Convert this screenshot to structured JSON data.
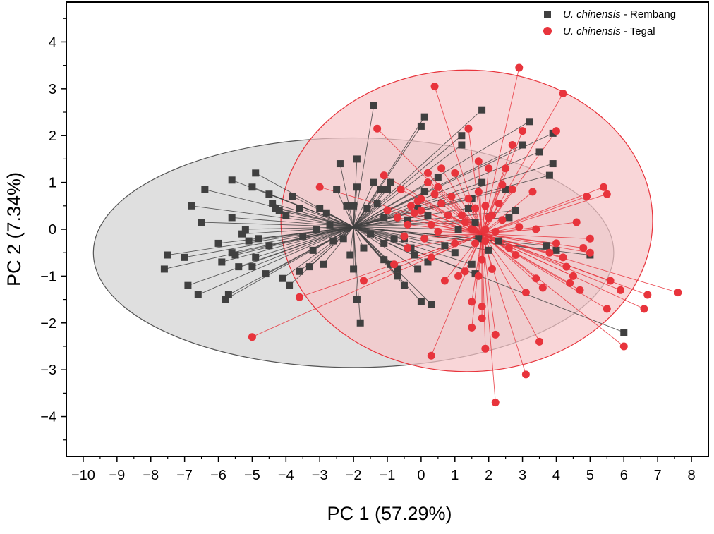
{
  "chart_data": {
    "type": "scatter",
    "xlabel": "PC 1 (57.29%)",
    "ylabel": "PC 2 (7.34%)",
    "xlim": [
      -10.5,
      8.5
    ],
    "ylim": [
      -4.85,
      4.85
    ],
    "x_ticks": [
      -10,
      -9,
      -8,
      -7,
      -6,
      -5,
      -4,
      -3,
      -2,
      -1,
      0,
      1,
      2,
      3,
      4,
      5,
      6,
      7,
      8
    ],
    "y_ticks": [
      -4,
      -3,
      -2,
      -1,
      0,
      1,
      2,
      3,
      4
    ],
    "x_tick_labels": [
      "−10",
      "−9",
      "−8",
      "−7",
      "−6",
      "−5",
      "−4",
      "−3",
      "−2",
      "−1",
      "0",
      "1",
      "2",
      "3",
      "4",
      "5",
      "6",
      "7",
      "8"
    ],
    "y_tick_labels": [
      "−4",
      "−3",
      "−2",
      "−1",
      "0",
      "1",
      "2",
      "3",
      "4"
    ],
    "grid": false,
    "legend_position": "top-right",
    "series": [
      {
        "name": "Rembang",
        "legend_italic": "U. chinensis",
        "legend_rest": " - Rembang",
        "marker": "square",
        "color": "#404040",
        "centroid": [
          -2.0,
          0.05
        ],
        "ellipse": {
          "center": [
            -2.0,
            -0.5
          ],
          "rx": 7.7,
          "ry": 2.45,
          "fill": "#d9d9d9",
          "stroke": "#555555"
        },
        "points": [
          [
            -7.6,
            -0.85
          ],
          [
            -7.5,
            -0.55
          ],
          [
            -7.0,
            -0.6
          ],
          [
            -6.9,
            -1.2
          ],
          [
            -6.6,
            -1.4
          ],
          [
            -6.8,
            0.5
          ],
          [
            -6.5,
            0.15
          ],
          [
            -6.4,
            0.85
          ],
          [
            -6.0,
            -0.3
          ],
          [
            -5.9,
            -0.7
          ],
          [
            -5.8,
            -1.5
          ],
          [
            -5.7,
            -1.4
          ],
          [
            -5.6,
            -0.5
          ],
          [
            -5.5,
            -0.55
          ],
          [
            -5.6,
            0.25
          ],
          [
            -5.4,
            -0.8
          ],
          [
            -5.3,
            -0.1
          ],
          [
            -5.2,
            0.0
          ],
          [
            -5.1,
            -0.25
          ],
          [
            -5.0,
            -0.8
          ],
          [
            -5.0,
            0.9
          ],
          [
            -5.6,
            1.05
          ],
          [
            -4.9,
            1.2
          ],
          [
            -4.9,
            -0.6
          ],
          [
            -4.8,
            -0.2
          ],
          [
            -4.5,
            -0.35
          ],
          [
            -4.6,
            -0.95
          ],
          [
            -4.5,
            0.75
          ],
          [
            -4.4,
            0.55
          ],
          [
            -4.3,
            0.45
          ],
          [
            -4.2,
            0.4
          ],
          [
            -4.1,
            -1.05
          ],
          [
            -4.0,
            0.3
          ],
          [
            -3.9,
            -1.2
          ],
          [
            -3.8,
            0.7
          ],
          [
            -3.6,
            0.45
          ],
          [
            -3.6,
            -0.9
          ],
          [
            -3.5,
            -0.15
          ],
          [
            -3.3,
            -0.8
          ],
          [
            -3.2,
            -0.45
          ],
          [
            -3.1,
            0.0
          ],
          [
            -3.0,
            0.45
          ],
          [
            -2.9,
            -0.75
          ],
          [
            -2.8,
            0.35
          ],
          [
            -2.7,
            0.1
          ],
          [
            -2.6,
            -0.25
          ],
          [
            -2.5,
            0.85
          ],
          [
            -2.4,
            1.4
          ],
          [
            -2.3,
            -0.2
          ],
          [
            -2.2,
            0.5
          ],
          [
            -2.1,
            -0.55
          ],
          [
            -2.0,
            0.5
          ],
          [
            -2.0,
            -0.85
          ],
          [
            -1.9,
            1.5
          ],
          [
            -1.9,
            0.9
          ],
          [
            -1.9,
            -1.5
          ],
          [
            -1.8,
            -2.0
          ],
          [
            -1.7,
            -0.4
          ],
          [
            -1.6,
            0.45
          ],
          [
            -1.5,
            -0.1
          ],
          [
            -1.4,
            1.0
          ],
          [
            -1.4,
            2.65
          ],
          [
            -1.3,
            0.55
          ],
          [
            -1.2,
            0.85
          ],
          [
            -1.1,
            -0.3
          ],
          [
            -1.1,
            -0.65
          ],
          [
            -1.1,
            0.25
          ],
          [
            -1.0,
            0.85
          ],
          [
            -0.9,
            1.0
          ],
          [
            -0.9,
            -0.75
          ],
          [
            -0.8,
            -0.2
          ],
          [
            -0.7,
            -0.85
          ],
          [
            -0.7,
            -1.0
          ],
          [
            -0.5,
            -1.2
          ],
          [
            -0.5,
            -0.2
          ],
          [
            -0.4,
            0.2
          ],
          [
            -0.3,
            -0.4
          ],
          [
            -0.2,
            -0.55
          ],
          [
            -0.1,
            0.45
          ],
          [
            -0.1,
            -0.85
          ],
          [
            0.0,
            -1.55
          ],
          [
            0.0,
            2.2
          ],
          [
            0.1,
            2.4
          ],
          [
            0.1,
            0.8
          ],
          [
            0.2,
            0.3
          ],
          [
            0.2,
            -0.7
          ],
          [
            0.3,
            -1.6
          ],
          [
            0.5,
            1.1
          ],
          [
            0.6,
            0.55
          ],
          [
            0.7,
            -0.35
          ],
          [
            1.0,
            -0.5
          ],
          [
            1.1,
            0.0
          ],
          [
            1.2,
            1.8
          ],
          [
            1.2,
            2.0
          ],
          [
            1.4,
            0.45
          ],
          [
            1.5,
            -0.75
          ],
          [
            1.5,
            0.65
          ],
          [
            1.6,
            0.15
          ],
          [
            1.7,
            -0.2
          ],
          [
            1.6,
            -0.95
          ],
          [
            1.8,
            1.0
          ],
          [
            1.8,
            2.55
          ],
          [
            2.0,
            -0.45
          ],
          [
            2.3,
            -0.25
          ],
          [
            2.5,
            0.85
          ],
          [
            2.6,
            0.25
          ],
          [
            2.8,
            0.4
          ],
          [
            3.0,
            1.8
          ],
          [
            3.2,
            2.3
          ],
          [
            3.5,
            1.65
          ],
          [
            3.7,
            -0.35
          ],
          [
            3.8,
            1.15
          ],
          [
            3.9,
            1.4
          ],
          [
            3.9,
            2.05
          ],
          [
            4.0,
            -0.45
          ],
          [
            5.0,
            -0.55
          ],
          [
            6.0,
            -2.2
          ]
        ]
      },
      {
        "name": "Tegal",
        "legend_italic": "U. chinensis",
        "legend_rest": " - Tegal",
        "marker": "circle",
        "color": "#e8343c",
        "centroid": [
          1.8,
          -0.1
        ],
        "ellipse": {
          "center": [
            1.35,
            0.18
          ],
          "rx": 5.5,
          "ry": 3.22,
          "fill": "#f7c5c7",
          "stroke": "#e8343c"
        },
        "points": [
          [
            -5.0,
            -2.3
          ],
          [
            -3.6,
            -1.45
          ],
          [
            -3.0,
            0.9
          ],
          [
            -1.7,
            -1.1
          ],
          [
            -1.3,
            2.15
          ],
          [
            -1.0,
            0.4
          ],
          [
            -1.1,
            1.15
          ],
          [
            -0.8,
            -0.75
          ],
          [
            -0.7,
            0.25
          ],
          [
            -0.6,
            0.85
          ],
          [
            -0.5,
            -0.15
          ],
          [
            -0.4,
            -0.4
          ],
          [
            -0.4,
            0.1
          ],
          [
            -0.3,
            0.5
          ],
          [
            -0.2,
            0.35
          ],
          [
            -0.1,
            0.6
          ],
          [
            0.0,
            0.65
          ],
          [
            0.0,
            0.4
          ],
          [
            0.1,
            -0.2
          ],
          [
            0.2,
            1.2
          ],
          [
            0.2,
            1.0
          ],
          [
            0.3,
            0.1
          ],
          [
            0.3,
            -0.6
          ],
          [
            0.3,
            -2.7
          ],
          [
            0.4,
            3.05
          ],
          [
            0.4,
            0.75
          ],
          [
            0.5,
            0.9
          ],
          [
            0.5,
            -0.05
          ],
          [
            0.6,
            1.3
          ],
          [
            0.6,
            0.55
          ],
          [
            0.7,
            -1.1
          ],
          [
            0.8,
            0.3
          ],
          [
            0.9,
            0.7
          ],
          [
            1.0,
            -0.3
          ],
          [
            1.0,
            1.2
          ],
          [
            1.1,
            -1.0
          ],
          [
            1.2,
            0.3
          ],
          [
            1.3,
            -0.9
          ],
          [
            1.3,
            0.15
          ],
          [
            1.4,
            0.65
          ],
          [
            1.4,
            2.15
          ],
          [
            1.5,
            -1.55
          ],
          [
            1.5,
            -2.1
          ],
          [
            1.5,
            0.0
          ],
          [
            1.6,
            -0.3
          ],
          [
            1.6,
            0.45
          ],
          [
            1.7,
            -1.0
          ],
          [
            1.7,
            0.8
          ],
          [
            1.7,
            1.45
          ],
          [
            1.8,
            -0.65
          ],
          [
            1.8,
            -1.65
          ],
          [
            1.8,
            -1.9
          ],
          [
            1.9,
            -0.25
          ],
          [
            1.9,
            0.5
          ],
          [
            1.9,
            -2.55
          ],
          [
            1.9,
            0.0
          ],
          [
            2.0,
            0.25
          ],
          [
            2.0,
            1.3
          ],
          [
            2.1,
            -0.85
          ],
          [
            2.1,
            0.3
          ],
          [
            2.2,
            -0.05
          ],
          [
            2.2,
            -2.25
          ],
          [
            2.2,
            -3.7
          ],
          [
            2.3,
            0.55
          ],
          [
            2.4,
            0.95
          ],
          [
            2.4,
            0.2
          ],
          [
            2.5,
            1.3
          ],
          [
            2.6,
            -0.4
          ],
          [
            2.7,
            1.8
          ],
          [
            2.7,
            0.85
          ],
          [
            2.8,
            -0.55
          ],
          [
            2.9,
            3.45
          ],
          [
            2.9,
            0.05
          ],
          [
            3.0,
            2.1
          ],
          [
            3.1,
            -1.35
          ],
          [
            3.1,
            -3.1
          ],
          [
            3.3,
            0.8
          ],
          [
            3.4,
            -1.05
          ],
          [
            3.4,
            0.0
          ],
          [
            3.5,
            -2.4
          ],
          [
            3.6,
            -1.25
          ],
          [
            3.8,
            -0.5
          ],
          [
            4.0,
            -0.3
          ],
          [
            4.0,
            2.1
          ],
          [
            4.2,
            2.9
          ],
          [
            4.2,
            -0.6
          ],
          [
            4.3,
            -0.8
          ],
          [
            4.4,
            -1.15
          ],
          [
            4.5,
            -1.0
          ],
          [
            4.6,
            0.15
          ],
          [
            4.7,
            -1.3
          ],
          [
            4.8,
            -0.4
          ],
          [
            4.9,
            0.7
          ],
          [
            5.0,
            -0.5
          ],
          [
            5.0,
            -0.2
          ],
          [
            5.4,
            0.9
          ],
          [
            5.5,
            0.75
          ],
          [
            5.5,
            -1.7
          ],
          [
            5.6,
            -1.1
          ],
          [
            5.9,
            -1.3
          ],
          [
            6.0,
            -2.5
          ],
          [
            6.7,
            -1.4
          ],
          [
            6.6,
            -1.7
          ],
          [
            7.6,
            -1.35
          ]
        ]
      }
    ]
  }
}
